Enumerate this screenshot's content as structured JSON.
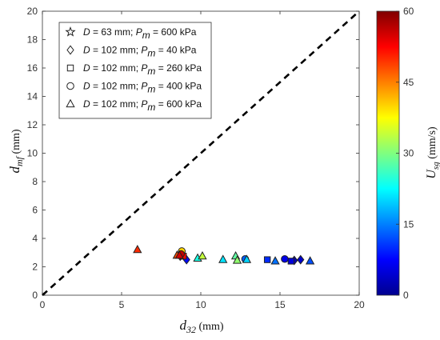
{
  "chart_data": {
    "type": "scatter",
    "xlabel": {
      "main": "d",
      "sub": "32",
      "unit": " (mm)"
    },
    "ylabel": {
      "main": "d",
      "sub": "mf",
      "unit": " (mm)"
    },
    "xlim": [
      0,
      20
    ],
    "ylim": [
      0,
      20
    ],
    "xticks": [
      "0",
      "5",
      "10",
      "15",
      "20"
    ],
    "yticks": [
      "0",
      "2",
      "4",
      "6",
      "8",
      "10",
      "12",
      "14",
      "16",
      "18",
      "20"
    ],
    "grid": false,
    "legend_position": "top-left",
    "reference_line": {
      "style": "dashed",
      "color": "#000000",
      "from": [
        0,
        0
      ],
      "to": [
        20,
        20
      ]
    },
    "colorbar": {
      "label": {
        "main": "U",
        "sub": "sg",
        "unit": " (mm/s)"
      },
      "range": [
        0,
        60
      ],
      "ticks": [
        "0",
        "15",
        "30",
        "45",
        "60"
      ],
      "colormap": "jet"
    },
    "series": [
      {
        "marker": "star",
        "legend": {
          "d": "D",
          "d_val": " = 63 mm; ",
          "p": "P",
          "p_sub": "m",
          "p_val": " = 600 kPa"
        },
        "points": []
      },
      {
        "marker": "diamond",
        "legend": {
          "d": "D",
          "d_val": " = 102 mm; ",
          "p": "P",
          "p_sub": "m",
          "p_val": " = 40 kPa"
        },
        "points": [
          {
            "x": 9.1,
            "y": 2.5,
            "c": 8
          },
          {
            "x": 15.9,
            "y": 2.45,
            "c": 3
          },
          {
            "x": 16.3,
            "y": 2.5,
            "c": 4
          },
          {
            "x": 8.7,
            "y": 2.75,
            "c": 54
          }
        ]
      },
      {
        "marker": "square",
        "legend": {
          "d": "D",
          "d_val": " = 102 mm; ",
          "p": "P",
          "p_sub": "m",
          "p_val": " = 260 kPa"
        },
        "points": [
          {
            "x": 14.2,
            "y": 2.5,
            "c": 10
          },
          {
            "x": 15.7,
            "y": 2.4,
            "c": 5
          },
          {
            "x": 8.9,
            "y": 2.75,
            "c": 52
          }
        ]
      },
      {
        "marker": "circle",
        "legend": {
          "d": "D",
          "d_val": " = 102 mm; ",
          "p": "P",
          "p_sub": "m",
          "p_val": " = 400 kPa"
        },
        "points": [
          {
            "x": 8.8,
            "y": 3.1,
            "c": 40
          },
          {
            "x": 12.8,
            "y": 2.55,
            "c": 13
          },
          {
            "x": 15.3,
            "y": 2.55,
            "c": 6
          },
          {
            "x": 8.75,
            "y": 2.9,
            "c": 56
          }
        ]
      },
      {
        "marker": "triangle",
        "legend": {
          "d": "D",
          "d_val": " = 102 mm; ",
          "p": "P",
          "p_sub": "m",
          "p_val": " = 600 kPa"
        },
        "points": [
          {
            "x": 6.0,
            "y": 3.2,
            "c": 50
          },
          {
            "x": 8.5,
            "y": 2.8,
            "c": 48
          },
          {
            "x": 8.65,
            "y": 2.8,
            "c": 55
          },
          {
            "x": 9.8,
            "y": 2.6,
            "c": 24
          },
          {
            "x": 10.1,
            "y": 2.75,
            "c": 34
          },
          {
            "x": 11.4,
            "y": 2.5,
            "c": 21
          },
          {
            "x": 12.2,
            "y": 2.75,
            "c": 28
          },
          {
            "x": 12.3,
            "y": 2.45,
            "c": 31
          },
          {
            "x": 12.9,
            "y": 2.5,
            "c": 20
          },
          {
            "x": 14.7,
            "y": 2.4,
            "c": 14
          },
          {
            "x": 16.9,
            "y": 2.4,
            "c": 12
          }
        ]
      }
    ]
  }
}
